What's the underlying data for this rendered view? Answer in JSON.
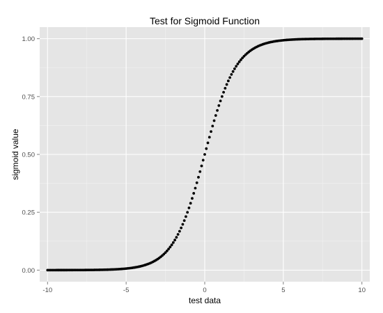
{
  "chart_data": {
    "type": "scatter",
    "title": "Test for Sigmoid Function",
    "xlabel": "test data",
    "ylabel": "sigmoid value",
    "xlim": [
      -10.5,
      10.5
    ],
    "ylim": [
      -0.05,
      1.05
    ],
    "x_ticks": [
      -10,
      -5,
      0,
      5,
      10
    ],
    "x_tick_labels": [
      "-10",
      "-5",
      "0",
      "5",
      "10"
    ],
    "y_ticks": [
      0,
      0.25,
      0.5,
      0.75,
      1
    ],
    "y_tick_labels": [
      "0.00",
      "0.25",
      "0.50",
      "0.75",
      "1.00"
    ],
    "grid": true,
    "colors": {
      "panel": "#e5e5e5",
      "grid_major": "#ffffff",
      "grid_minor": "#f2f2f2",
      "points": "#000000",
      "tick": "#7f7f7f"
    },
    "points": {
      "x_range": [
        -10,
        10
      ],
      "count": 201,
      "y_formula": "1 / (1 + exp(-x))"
    }
  }
}
